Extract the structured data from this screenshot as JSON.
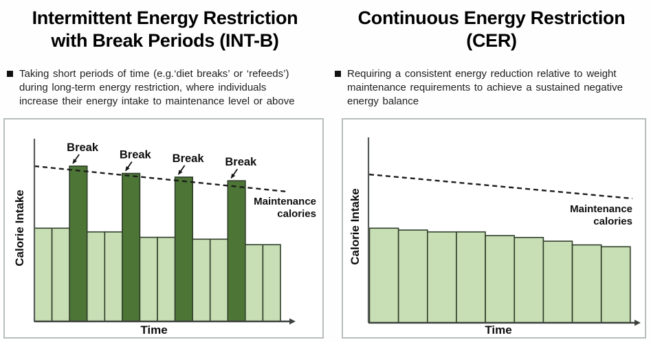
{
  "panels": {
    "left": {
      "title_lines": [
        "Intermittent Energy Restriction",
        "with Break Periods (INT-B)"
      ],
      "bullet_lines": [
        "Taking short periods of time (e.g.‘diet breaks’ or ‘refeeds’)",
        "during long-term energy restriction, where individuals",
        "increase their energy intake to maintenance level or above"
      ]
    },
    "right": {
      "title_lines": [
        "Continuous Energy Restriction",
        "(CER)"
      ],
      "bullet_lines": [
        "Requiring a consistent energy reduction relative to weight",
        "maintenance requirements to achieve a sustained negative",
        "energy balance"
      ]
    }
  },
  "chart_data": [
    {
      "id": "intb",
      "type": "bar",
      "title": "Intermittent Energy Restriction with Break Periods (INT-B)",
      "xlabel": "Time",
      "ylabel": "Calorie Intake",
      "ylim": [
        0,
        100
      ],
      "grid": false,
      "values": [
        51,
        51,
        85,
        49,
        49,
        81,
        46,
        46,
        79,
        45,
        45,
        77,
        42,
        42
      ],
      "break_indices": [
        2,
        5,
        8,
        11
      ],
      "break_label": "Break",
      "maintenance_line": {
        "label_lines": [
          "Maintenance",
          "calories"
        ],
        "start_value": 85,
        "end_value": 71
      },
      "colors": {
        "bar_light": "#c8dfb5",
        "bar_break": "#4d7636",
        "bar_stroke": "#2e3d29",
        "axis": "#565b58",
        "dash": "#1c1c1c"
      }
    },
    {
      "id": "cer",
      "type": "bar",
      "title": "Continuous Energy Restriction (CER)",
      "xlabel": "Time",
      "ylabel": "Calorie Intake",
      "ylim": [
        0,
        100
      ],
      "grid": false,
      "values": [
        51,
        50,
        49,
        49,
        47,
        46,
        44,
        42,
        41
      ],
      "break_indices": [],
      "break_label": "",
      "maintenance_line": {
        "label_lines": [
          "Maintenance",
          "calories"
        ],
        "start_value": 80,
        "end_value": 67
      },
      "colors": {
        "bar_light": "#c8dfb5",
        "bar_break": "#4d7636",
        "bar_stroke": "#2e3d29",
        "axis": "#565b58",
        "dash": "#1c1c1c"
      }
    }
  ]
}
